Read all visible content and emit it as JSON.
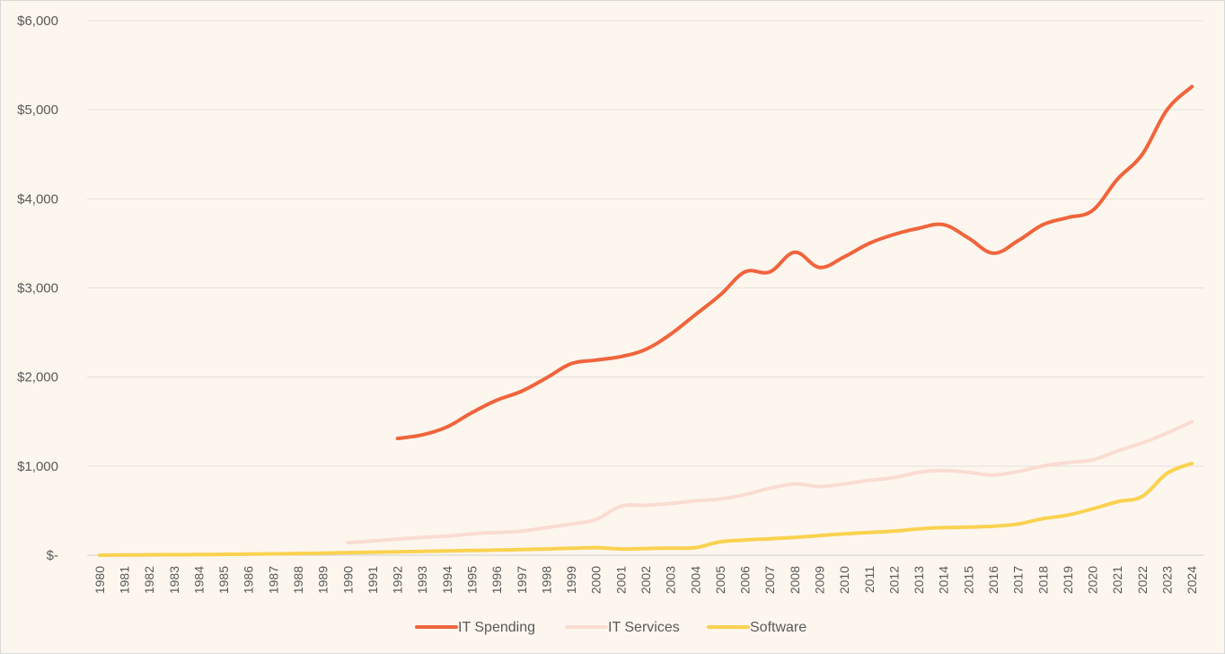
{
  "chart_data": {
    "type": "line",
    "title": "",
    "xlabel": "",
    "ylabel": "",
    "ylim": [
      0,
      6000
    ],
    "y_ticks": [
      {
        "value": 0,
        "label": "$-"
      },
      {
        "value": 1000,
        "label": "$1,000"
      },
      {
        "value": 2000,
        "label": "$2,000"
      },
      {
        "value": 3000,
        "label": "$3,000"
      },
      {
        "value": 4000,
        "label": "$4,000"
      },
      {
        "value": 5000,
        "label": "$5,000"
      },
      {
        "value": 6000,
        "label": "$6,000"
      }
    ],
    "grid": "horizontal",
    "legend_position": "bottom",
    "categories": [
      "1980",
      "1981",
      "1982",
      "1983",
      "1984",
      "1985",
      "1986",
      "1987",
      "1988",
      "1989",
      "1990",
      "1991",
      "1992",
      "1993",
      "1994",
      "1995",
      "1996",
      "1997",
      "1998",
      "1999",
      "2000",
      "2001",
      "2002",
      "2003",
      "2004",
      "2005",
      "2006",
      "2007",
      "2008",
      "2009",
      "2010",
      "2011",
      "2012",
      "2013",
      "2014",
      "2015",
      "2016",
      "2017",
      "2018",
      "2019",
      "2020",
      "2021",
      "2022",
      "2023",
      "2024"
    ],
    "series": [
      {
        "name": "IT Spending",
        "color": "#f0643c",
        "values": [
          null,
          null,
          null,
          null,
          null,
          null,
          null,
          null,
          null,
          null,
          null,
          null,
          1310,
          1350,
          1440,
          1600,
          1740,
          1840,
          1990,
          2150,
          2190,
          2230,
          2310,
          2480,
          2700,
          2920,
          3180,
          3180,
          3400,
          3230,
          3350,
          3500,
          3600,
          3670,
          3710,
          3560,
          3390,
          3530,
          3710,
          3790,
          3870,
          4220,
          4500,
          5000,
          5260
        ]
      },
      {
        "name": "IT Services",
        "color": "#fadcd2",
        "values": [
          null,
          null,
          null,
          null,
          null,
          null,
          null,
          null,
          null,
          null,
          140,
          160,
          180,
          200,
          215,
          240,
          255,
          270,
          310,
          350,
          400,
          550,
          560,
          580,
          610,
          630,
          680,
          750,
          800,
          770,
          800,
          840,
          870,
          930,
          950,
          930,
          900,
          940,
          1000,
          1040,
          1070,
          1170,
          1260,
          1370,
          1500
        ]
      },
      {
        "name": "Software",
        "color": "#fad250",
        "values": [
          0,
          2,
          4,
          5,
          7,
          9,
          12,
          15,
          19,
          23,
          28,
          33,
          38,
          43,
          48,
          52,
          57,
          63,
          70,
          78,
          85,
          70,
          75,
          80,
          85,
          150,
          170,
          185,
          200,
          220,
          240,
          255,
          270,
          295,
          310,
          315,
          325,
          350,
          410,
          450,
          520,
          600,
          660,
          920,
          1030
        ]
      }
    ]
  }
}
